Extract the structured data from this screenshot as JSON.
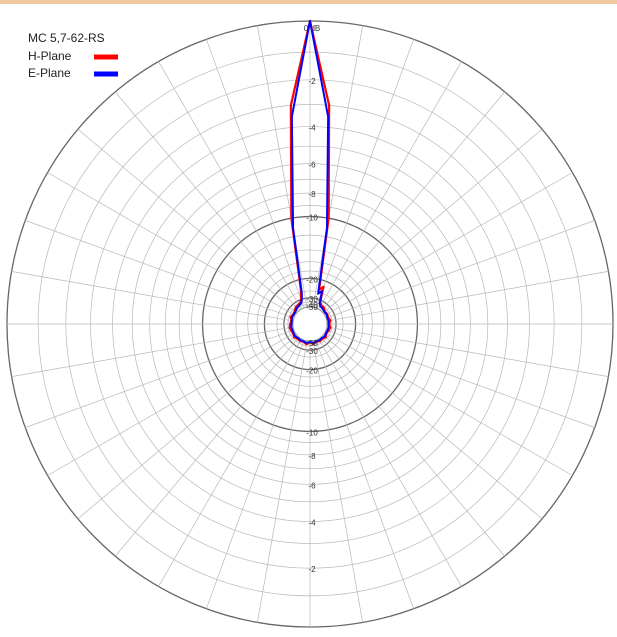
{
  "chart_data": {
    "type": "line",
    "subtype": "polar-radiation-pattern",
    "title": "MC 5,7-62-RS",
    "radial_axis": {
      "unit_label": "0 dB",
      "range_db": [
        -60,
        0
      ],
      "scale": "logarithmic-like (field strength)",
      "top_tick_labels": [
        "0 dB",
        "-2",
        "-4",
        "-6",
        "-8",
        "-10",
        "-20",
        "-30",
        "-40",
        "-50"
      ],
      "bottom_tick_labels": [
        "-50",
        "-30",
        "-20",
        "-10",
        "-8",
        "-6",
        "-4",
        "-2"
      ],
      "radial_lines": "every 10 degrees",
      "grid": true
    },
    "series": [
      {
        "name": "H-Plane",
        "color": "#ff0000",
        "angle_deg": [
          0,
          5,
          10,
          15,
          20,
          25,
          30,
          40,
          50,
          60,
          70,
          80,
          90,
          100,
          110,
          120,
          130,
          140,
          150,
          160,
          170,
          180,
          190,
          200,
          210,
          220,
          230,
          240,
          250,
          260,
          270,
          280,
          290,
          300,
          310,
          320,
          330,
          335,
          340,
          345,
          350,
          355
        ],
        "gain_db": [
          0,
          -3,
          -10,
          -24,
          -22,
          -32,
          -35,
          -36,
          -42,
          -40,
          -42,
          -38,
          -42,
          -38,
          -40,
          -44,
          -38,
          -42,
          -40,
          -44,
          -38,
          -48,
          -38,
          -44,
          -40,
          -42,
          -38,
          -42,
          -40,
          -38,
          -40,
          -44,
          -38,
          -42,
          -40,
          -35,
          -34,
          -33,
          -30,
          -24,
          -10,
          -3
        ]
      },
      {
        "name": "E-Plane",
        "color": "#0000ff",
        "angle_deg": [
          0,
          5,
          10,
          15,
          20,
          25,
          30,
          40,
          50,
          60,
          70,
          80,
          90,
          100,
          110,
          120,
          130,
          140,
          150,
          160,
          170,
          180,
          190,
          200,
          210,
          220,
          230,
          240,
          250,
          260,
          270,
          280,
          290,
          300,
          310,
          320,
          330,
          335,
          340,
          345,
          350,
          355
        ],
        "gain_db": [
          0,
          -3.5,
          -11,
          -26,
          -24,
          -34,
          -38,
          -40,
          -44,
          -42,
          -46,
          -44,
          -46,
          -43,
          -45,
          -46,
          -42,
          -46,
          -44,
          -46,
          -42,
          -50,
          -42,
          -46,
          -44,
          -46,
          -42,
          -44,
          -45,
          -43,
          -46,
          -46,
          -42,
          -44,
          -43,
          -38,
          -36,
          -35,
          -32,
          -26,
          -11,
          -3.5
        ]
      }
    ],
    "legend": {
      "position": "top-left",
      "entries": [
        {
          "label": "H-Plane",
          "color": "#ff0000"
        },
        {
          "label": "E-Plane",
          "color": "#0000ff"
        }
      ]
    }
  }
}
